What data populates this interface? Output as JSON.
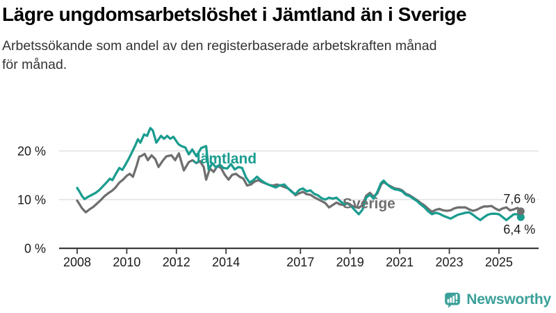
{
  "page": {
    "background": "#FFFFFF"
  },
  "header": {
    "title": "Lägre ungdomsarbetslöshet i Jämtland än i Sverige",
    "subtitle": "Arbetssökande som andel av den registerbaserade arbetskraften månad\nför månad."
  },
  "chart_data": {
    "type": "line",
    "title": "Lägre ungdomsarbetslöshet i Jämtland än i Sverige",
    "subtitle": "Arbetssökande som andel av den registerbaserade arbetskraften månad för månad.",
    "grid": true,
    "legend_position": "inline-labels",
    "x_axis": {
      "unit": "year",
      "range": [
        2007.3,
        2026.6
      ],
      "ticks": [
        2008,
        2010,
        2012,
        2014,
        2017,
        2019,
        2021,
        2023,
        2025
      ],
      "tick_labels": [
        "2008",
        "2010",
        "2012",
        "2014",
        "2017",
        "2019",
        "2021",
        "2023",
        "2025"
      ]
    },
    "y_axis": {
      "unit": "percent",
      "range": [
        0,
        29.5
      ],
      "ticks": [
        0,
        10,
        20
      ],
      "tick_labels": [
        "0 %",
        "10 %",
        "20 %"
      ]
    },
    "colors": {
      "jamtland": "#1A9C8F",
      "sverige": "#6F6F6F",
      "gridline": "#D9D9D9",
      "axis": "#3C3C3C",
      "value_label": "#1A1A1A"
    },
    "series": [
      {
        "id": "jamtland",
        "name": "Jämtland",
        "color": "#1A9C8F",
        "name_label_pos": [
          2012.65,
          17.4
        ],
        "end_label": "6,4 %",
        "end_label_side": "below",
        "last_value": 6.4,
        "points": [
          [
            2008.0,
            12.4
          ],
          [
            2008.1,
            11.6
          ],
          [
            2008.2,
            10.7
          ],
          [
            2008.3,
            10.1
          ],
          [
            2008.45,
            10.6
          ],
          [
            2008.6,
            11.0
          ],
          [
            2008.75,
            11.4
          ],
          [
            2008.9,
            12.0
          ],
          [
            2009.05,
            12.8
          ],
          [
            2009.2,
            13.6
          ],
          [
            2009.32,
            14.3
          ],
          [
            2009.42,
            14.0
          ],
          [
            2009.55,
            15.2
          ],
          [
            2009.7,
            16.5
          ],
          [
            2009.82,
            16.1
          ],
          [
            2009.95,
            17.2
          ],
          [
            2010.07,
            18.3
          ],
          [
            2010.2,
            19.6
          ],
          [
            2010.33,
            21.0
          ],
          [
            2010.45,
            22.4
          ],
          [
            2010.55,
            21.7
          ],
          [
            2010.7,
            23.4
          ],
          [
            2010.82,
            23.1
          ],
          [
            2010.95,
            24.7
          ],
          [
            2011.05,
            24.2
          ],
          [
            2011.19,
            21.7
          ],
          [
            2011.38,
            23.1
          ],
          [
            2011.5,
            22.5
          ],
          [
            2011.63,
            23.1
          ],
          [
            2011.75,
            22.5
          ],
          [
            2011.88,
            22.9
          ],
          [
            2012.08,
            21.4
          ],
          [
            2012.2,
            21.0
          ],
          [
            2012.36,
            20.7
          ],
          [
            2012.5,
            19.3
          ],
          [
            2012.64,
            20.3
          ],
          [
            2012.81,
            18.9
          ],
          [
            2013.0,
            20.6
          ],
          [
            2013.2,
            21.0
          ],
          [
            2013.3,
            16.2
          ],
          [
            2013.45,
            17.5
          ],
          [
            2013.6,
            16.6
          ],
          [
            2013.75,
            17.2
          ],
          [
            2013.9,
            16.5
          ],
          [
            2014.05,
            16.4
          ],
          [
            2014.2,
            17.3
          ],
          [
            2014.35,
            16.2
          ],
          [
            2014.5,
            16.7
          ],
          [
            2014.65,
            16.5
          ],
          [
            2014.8,
            14.6
          ],
          [
            2014.95,
            13.5
          ],
          [
            2015.1,
            14.0
          ],
          [
            2015.25,
            14.7
          ],
          [
            2015.4,
            14.0
          ],
          [
            2015.55,
            13.5
          ],
          [
            2015.7,
            13.1
          ],
          [
            2015.85,
            12.8
          ],
          [
            2016.0,
            12.5
          ],
          [
            2016.15,
            12.9
          ],
          [
            2016.35,
            13.1
          ],
          [
            2016.5,
            12.3
          ],
          [
            2016.65,
            11.6
          ],
          [
            2016.8,
            11.1
          ],
          [
            2016.95,
            12.0
          ],
          [
            2017.1,
            12.3
          ],
          [
            2017.25,
            11.7
          ],
          [
            2017.4,
            11.9
          ],
          [
            2017.55,
            11.2
          ],
          [
            2017.7,
            10.9
          ],
          [
            2017.85,
            10.3
          ],
          [
            2018.0,
            10.0
          ],
          [
            2018.15,
            10.4
          ],
          [
            2018.3,
            10.2
          ],
          [
            2018.45,
            10.4
          ],
          [
            2018.6,
            9.7
          ],
          [
            2018.75,
            9.1
          ],
          [
            2018.9,
            9.3
          ],
          [
            2019.05,
            8.6
          ],
          [
            2019.2,
            7.8
          ],
          [
            2019.35,
            7.0
          ],
          [
            2019.5,
            7.9
          ],
          [
            2019.65,
            10.4
          ],
          [
            2019.8,
            11.0
          ],
          [
            2019.95,
            10.2
          ],
          [
            2020.1,
            11.6
          ],
          [
            2020.25,
            13.4
          ],
          [
            2020.35,
            13.9
          ],
          [
            2020.5,
            13.1
          ],
          [
            2020.65,
            12.5
          ],
          [
            2020.8,
            12.1
          ],
          [
            2020.95,
            12.0
          ],
          [
            2021.1,
            11.7
          ],
          [
            2021.25,
            11.0
          ],
          [
            2021.4,
            10.7
          ],
          [
            2021.55,
            10.2
          ],
          [
            2021.7,
            9.7
          ],
          [
            2021.85,
            9.0
          ],
          [
            2022.0,
            8.4
          ],
          [
            2022.15,
            7.6
          ],
          [
            2022.3,
            7.0
          ],
          [
            2022.45,
            7.3
          ],
          [
            2022.6,
            7.1
          ],
          [
            2022.75,
            6.7
          ],
          [
            2022.9,
            6.4
          ],
          [
            2023.05,
            6.1
          ],
          [
            2023.2,
            6.5
          ],
          [
            2023.35,
            6.9
          ],
          [
            2023.5,
            7.1
          ],
          [
            2023.65,
            7.3
          ],
          [
            2023.8,
            7.4
          ],
          [
            2023.95,
            6.9
          ],
          [
            2024.1,
            6.3
          ],
          [
            2024.25,
            5.8
          ],
          [
            2024.4,
            6.4
          ],
          [
            2024.55,
            6.9
          ],
          [
            2024.7,
            7.1
          ],
          [
            2024.85,
            7.1
          ],
          [
            2025.0,
            7.0
          ],
          [
            2025.15,
            6.4
          ],
          [
            2025.3,
            5.8
          ],
          [
            2025.45,
            6.4
          ],
          [
            2025.6,
            7.0
          ],
          [
            2025.75,
            7.0
          ],
          [
            2025.88,
            6.4
          ]
        ]
      },
      {
        "id": "sverige",
        "name": "Sverige",
        "color": "#6F6F6F",
        "name_label_pos": [
          2018.7,
          8.25
        ],
        "end_label": "7,6 %",
        "end_label_side": "above",
        "last_value": 7.6,
        "points": [
          [
            2008.0,
            9.8
          ],
          [
            2008.1,
            9.0
          ],
          [
            2008.2,
            8.2
          ],
          [
            2008.35,
            7.4
          ],
          [
            2008.5,
            8.0
          ],
          [
            2008.65,
            8.5
          ],
          [
            2008.8,
            9.2
          ],
          [
            2008.95,
            9.9
          ],
          [
            2009.1,
            10.7
          ],
          [
            2009.25,
            11.3
          ],
          [
            2009.4,
            11.8
          ],
          [
            2009.55,
            12.5
          ],
          [
            2009.7,
            13.5
          ],
          [
            2009.85,
            14.1
          ],
          [
            2010.0,
            14.9
          ],
          [
            2010.12,
            15.3
          ],
          [
            2010.25,
            14.7
          ],
          [
            2010.4,
            17.0
          ],
          [
            2010.5,
            18.8
          ],
          [
            2010.6,
            19.0
          ],
          [
            2010.72,
            19.4
          ],
          [
            2010.85,
            18.1
          ],
          [
            2011.0,
            19.1
          ],
          [
            2011.15,
            18.3
          ],
          [
            2011.28,
            16.7
          ],
          [
            2011.45,
            18.0
          ],
          [
            2011.6,
            18.9
          ],
          [
            2011.8,
            19.1
          ],
          [
            2011.95,
            18.1
          ],
          [
            2012.1,
            19.5
          ],
          [
            2012.3,
            16.0
          ],
          [
            2012.5,
            17.7
          ],
          [
            2012.65,
            18.1
          ],
          [
            2012.8,
            17.5
          ],
          [
            2012.95,
            17.9
          ],
          [
            2013.1,
            16.7
          ],
          [
            2013.2,
            14.1
          ],
          [
            2013.35,
            16.4
          ],
          [
            2013.5,
            15.7
          ],
          [
            2013.65,
            16.9
          ],
          [
            2013.8,
            16.5
          ],
          [
            2013.95,
            15.1
          ],
          [
            2014.1,
            14.1
          ],
          [
            2014.25,
            15.1
          ],
          [
            2014.4,
            15.3
          ],
          [
            2014.55,
            14.7
          ],
          [
            2014.7,
            14.3
          ],
          [
            2014.85,
            12.9
          ],
          [
            2015.0,
            13.1
          ],
          [
            2015.15,
            13.7
          ],
          [
            2015.3,
            14.0
          ],
          [
            2015.45,
            13.6
          ],
          [
            2015.6,
            13.3
          ],
          [
            2015.75,
            13.0
          ],
          [
            2015.9,
            12.9
          ],
          [
            2016.05,
            13.1
          ],
          [
            2016.2,
            12.9
          ],
          [
            2016.35,
            12.6
          ],
          [
            2016.5,
            12.3
          ],
          [
            2016.65,
            11.7
          ],
          [
            2016.8,
            10.9
          ],
          [
            2016.95,
            11.3
          ],
          [
            2017.1,
            11.6
          ],
          [
            2017.25,
            11.1
          ],
          [
            2017.4,
            11.0
          ],
          [
            2017.55,
            10.5
          ],
          [
            2017.7,
            10.1
          ],
          [
            2017.85,
            9.7
          ],
          [
            2018.0,
            9.3
          ],
          [
            2018.15,
            8.4
          ],
          [
            2018.3,
            8.9
          ],
          [
            2018.45,
            9.4
          ],
          [
            2018.6,
            9.0
          ],
          [
            2018.75,
            8.9
          ],
          [
            2018.9,
            9.2
          ],
          [
            2019.05,
            8.8
          ],
          [
            2019.2,
            8.5
          ],
          [
            2019.35,
            8.3
          ],
          [
            2019.5,
            8.9
          ],
          [
            2019.65,
            10.8
          ],
          [
            2019.8,
            11.4
          ],
          [
            2019.95,
            10.6
          ],
          [
            2020.1,
            11.3
          ],
          [
            2020.25,
            13.1
          ],
          [
            2020.35,
            13.6
          ],
          [
            2020.5,
            13.1
          ],
          [
            2020.65,
            12.7
          ],
          [
            2020.8,
            12.3
          ],
          [
            2020.95,
            12.2
          ],
          [
            2021.1,
            11.9
          ],
          [
            2021.25,
            11.2
          ],
          [
            2021.4,
            10.9
          ],
          [
            2021.55,
            10.4
          ],
          [
            2021.7,
            9.9
          ],
          [
            2021.85,
            9.3
          ],
          [
            2022.0,
            8.8
          ],
          [
            2022.15,
            8.1
          ],
          [
            2022.3,
            7.5
          ],
          [
            2022.45,
            7.9
          ],
          [
            2022.6,
            8.1
          ],
          [
            2022.75,
            7.8
          ],
          [
            2022.9,
            7.7
          ],
          [
            2023.05,
            7.8
          ],
          [
            2023.2,
            8.2
          ],
          [
            2023.35,
            8.4
          ],
          [
            2023.5,
            8.4
          ],
          [
            2023.65,
            8.4
          ],
          [
            2023.8,
            8.0
          ],
          [
            2023.95,
            7.7
          ],
          [
            2024.1,
            7.9
          ],
          [
            2024.25,
            8.3
          ],
          [
            2024.4,
            8.6
          ],
          [
            2024.55,
            8.6
          ],
          [
            2024.7,
            8.7
          ],
          [
            2024.85,
            8.2
          ],
          [
            2025.0,
            7.8
          ],
          [
            2025.15,
            8.2
          ],
          [
            2025.3,
            8.4
          ],
          [
            2025.45,
            7.8
          ],
          [
            2025.6,
            8.0
          ],
          [
            2025.75,
            8.3
          ],
          [
            2025.88,
            7.6
          ]
        ]
      }
    ]
  },
  "footer": {
    "brand": "Newsworthy",
    "brand_color": "#3BA099"
  }
}
